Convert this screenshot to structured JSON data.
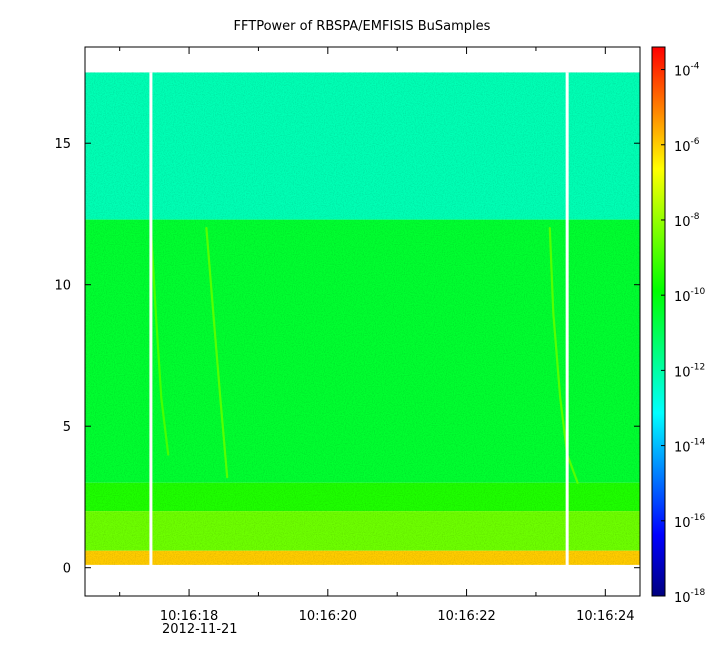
{
  "chart_data": {
    "type": "heatmap",
    "title": "FFTPower of RBSPA/EMFISIS  BuSamples",
    "xlabel": "",
    "ylabel": "",
    "x_tick_labels": [
      "10:16:18",
      "10:16:20",
      "10:16:22",
      "10:16:24"
    ],
    "x_secondary_label": "2012-11-21",
    "x_range_seconds": [
      16.5,
      24.5
    ],
    "x_ticks_seconds": [
      18,
      20,
      22,
      24
    ],
    "x_minor_ticks_seconds": [
      17,
      19,
      21,
      23
    ],
    "y_ticks": [
      0,
      5,
      10,
      15
    ],
    "ylim": [
      -1,
      18.4
    ],
    "data_top_frequency": 17.5,
    "colorbar": {
      "scale": "log",
      "range_exponents": [
        -18,
        -3.4
      ],
      "tick_base": "10",
      "tick_exponents": [
        "-4",
        "-6",
        "-8",
        "-10",
        "-12",
        "-14",
        "-16",
        "-18"
      ],
      "colormap": [
        "#00007f",
        "#0000ff",
        "#007fff",
        "#00ffff",
        "#00ff7f",
        "#00ff00",
        "#7fff00",
        "#ffff00",
        "#ff7f00",
        "#ff0000"
      ]
    },
    "regions": [
      {
        "y_range": [
          12.3,
          17.5
        ],
        "power_exp": -12.2
      },
      {
        "y_range": [
          3.0,
          12.3
        ],
        "power_exp": -10.5
      },
      {
        "y_range": [
          2.0,
          3.0
        ],
        "power_exp": -9.5
      },
      {
        "y_range": [
          0.6,
          2.0
        ],
        "power_exp": -8.5
      },
      {
        "y_range": [
          0.1,
          0.6
        ],
        "power_exp": -6.0
      }
    ],
    "data_gaps_seconds": [
      17.45,
      23.45
    ],
    "whistler_traces": [
      {
        "points": [
          [
            17.45,
            12.0
          ],
          [
            17.52,
            9.0
          ],
          [
            17.6,
            6.0
          ],
          [
            17.7,
            4.0
          ]
        ],
        "power_exp": -9.0
      },
      {
        "points": [
          [
            18.25,
            12.0
          ],
          [
            18.35,
            9.0
          ],
          [
            18.45,
            6.0
          ],
          [
            18.55,
            3.2
          ]
        ],
        "power_exp": -8.8
      },
      {
        "points": [
          [
            23.2,
            12.0
          ],
          [
            23.25,
            9.0
          ],
          [
            23.35,
            6.0
          ],
          [
            23.45,
            4.0
          ],
          [
            23.6,
            3.0
          ]
        ],
        "power_exp": -8.8
      }
    ]
  }
}
